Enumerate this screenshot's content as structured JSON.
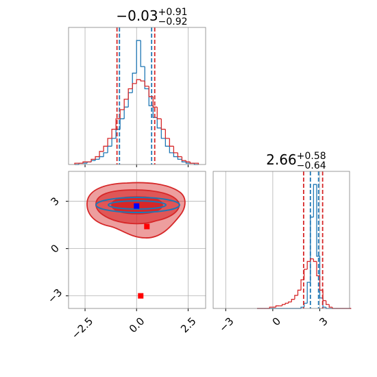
{
  "chart_data": [
    {
      "type": "histogram",
      "title": "−0.03",
      "title_sup": "+0.91",
      "title_sub": "−0.92",
      "bins": [
        -3.0,
        -2.8,
        -2.6,
        -2.4,
        -2.2,
        -2.0,
        -1.8,
        -1.6,
        -1.4,
        -1.2,
        -1.0,
        -0.8,
        -0.6,
        -0.4,
        -0.2,
        0.0,
        0.2,
        0.4,
        0.6,
        0.8,
        1.0,
        1.2,
        1.4,
        1.6,
        1.8,
        2.0,
        2.2,
        2.4,
        2.6,
        2.8,
        3.0
      ],
      "series": [
        {
          "color": "#1f77b4",
          "values": [
            0,
            1,
            1,
            2,
            3,
            4,
            6,
            9,
            14,
            20,
            27,
            35,
            44,
            55,
            70,
            95,
            75,
            58,
            45,
            36,
            28,
            20,
            14,
            9,
            6,
            4,
            2,
            1,
            1,
            0
          ],
          "quantiles": [
            -0.83,
            0.73
          ]
        },
        {
          "color": "#d62728",
          "values": [
            1,
            1,
            2,
            2,
            4,
            6,
            10,
            14,
            20,
            27,
            35,
            42,
            50,
            58,
            62,
            65,
            64,
            60,
            52,
            44,
            35,
            27,
            20,
            14,
            9,
            6,
            3,
            2,
            1,
            1
          ],
          "quantiles": [
            -0.95,
            0.88
          ]
        }
      ],
      "xlim": [
        -3.3,
        3.35
      ],
      "ylim": [
        0,
        105
      ],
      "xticks": [
        -2.5,
        0,
        2.5
      ],
      "grid": true
    },
    {
      "type": "scatter",
      "series": [
        {
          "color": "#0000ff",
          "x": [
            0.0
          ],
          "y": [
            2.7
          ]
        },
        {
          "color": "#ff0000",
          "x": [
            0.5,
            0.2
          ],
          "y": [
            1.4,
            -3.0
          ]
        }
      ],
      "xlim": [
        -3.3,
        3.35
      ],
      "ylim": [
        -3.8,
        4.9
      ],
      "xticks": [
        {
          "value": -2.5,
          "label": "−2.5"
        },
        {
          "value": 0,
          "label": "0.0"
        },
        {
          "value": 2.5,
          "label": "2.5"
        }
      ],
      "yticks": [
        {
          "value": -3,
          "label": "−3"
        },
        0,
        3
      ],
      "grid": true
    },
    {
      "type": "histogram",
      "title": "2.66",
      "title_sup": "+0.58",
      "title_sub": "−0.64",
      "bins": [
        -1.0,
        -0.8,
        -0.6,
        -0.4,
        -0.2,
        0.0,
        0.2,
        0.4,
        0.6,
        0.8,
        1.0,
        1.2,
        1.4,
        1.6,
        1.8,
        2.0,
        2.2,
        2.4,
        2.6,
        2.8,
        3.0,
        3.2,
        3.4,
        3.6,
        3.8,
        4.0,
        4.2,
        4.4,
        4.6,
        4.8,
        5.0
      ],
      "series": [
        {
          "color": "#1f77b4",
          "values": [
            0,
            0,
            0,
            0,
            0,
            0,
            0,
            0,
            0,
            0,
            0,
            0,
            0,
            0,
            1,
            4,
            20,
            70,
            95,
            40,
            8,
            1,
            0,
            0,
            0,
            0,
            0,
            0,
            0,
            0
          ],
          "quantiles": [
            2.4,
            2.92
          ]
        },
        {
          "color": "#d62728",
          "values": [
            0,
            0,
            0,
            0,
            1,
            1,
            2,
            2,
            3,
            4,
            5,
            7,
            10,
            14,
            22,
            30,
            36,
            38,
            36,
            25,
            14,
            6,
            3,
            1,
            0,
            0,
            0,
            0,
            0,
            0
          ],
          "quantiles": [
            1.97,
            3.18
          ]
        }
      ],
      "xlim": [
        -3.8,
        4.9
      ],
      "ylim": [
        0,
        105
      ],
      "xticks": [
        {
          "value": -3,
          "label": "−3"
        },
        0,
        3
      ],
      "grid": true
    }
  ]
}
